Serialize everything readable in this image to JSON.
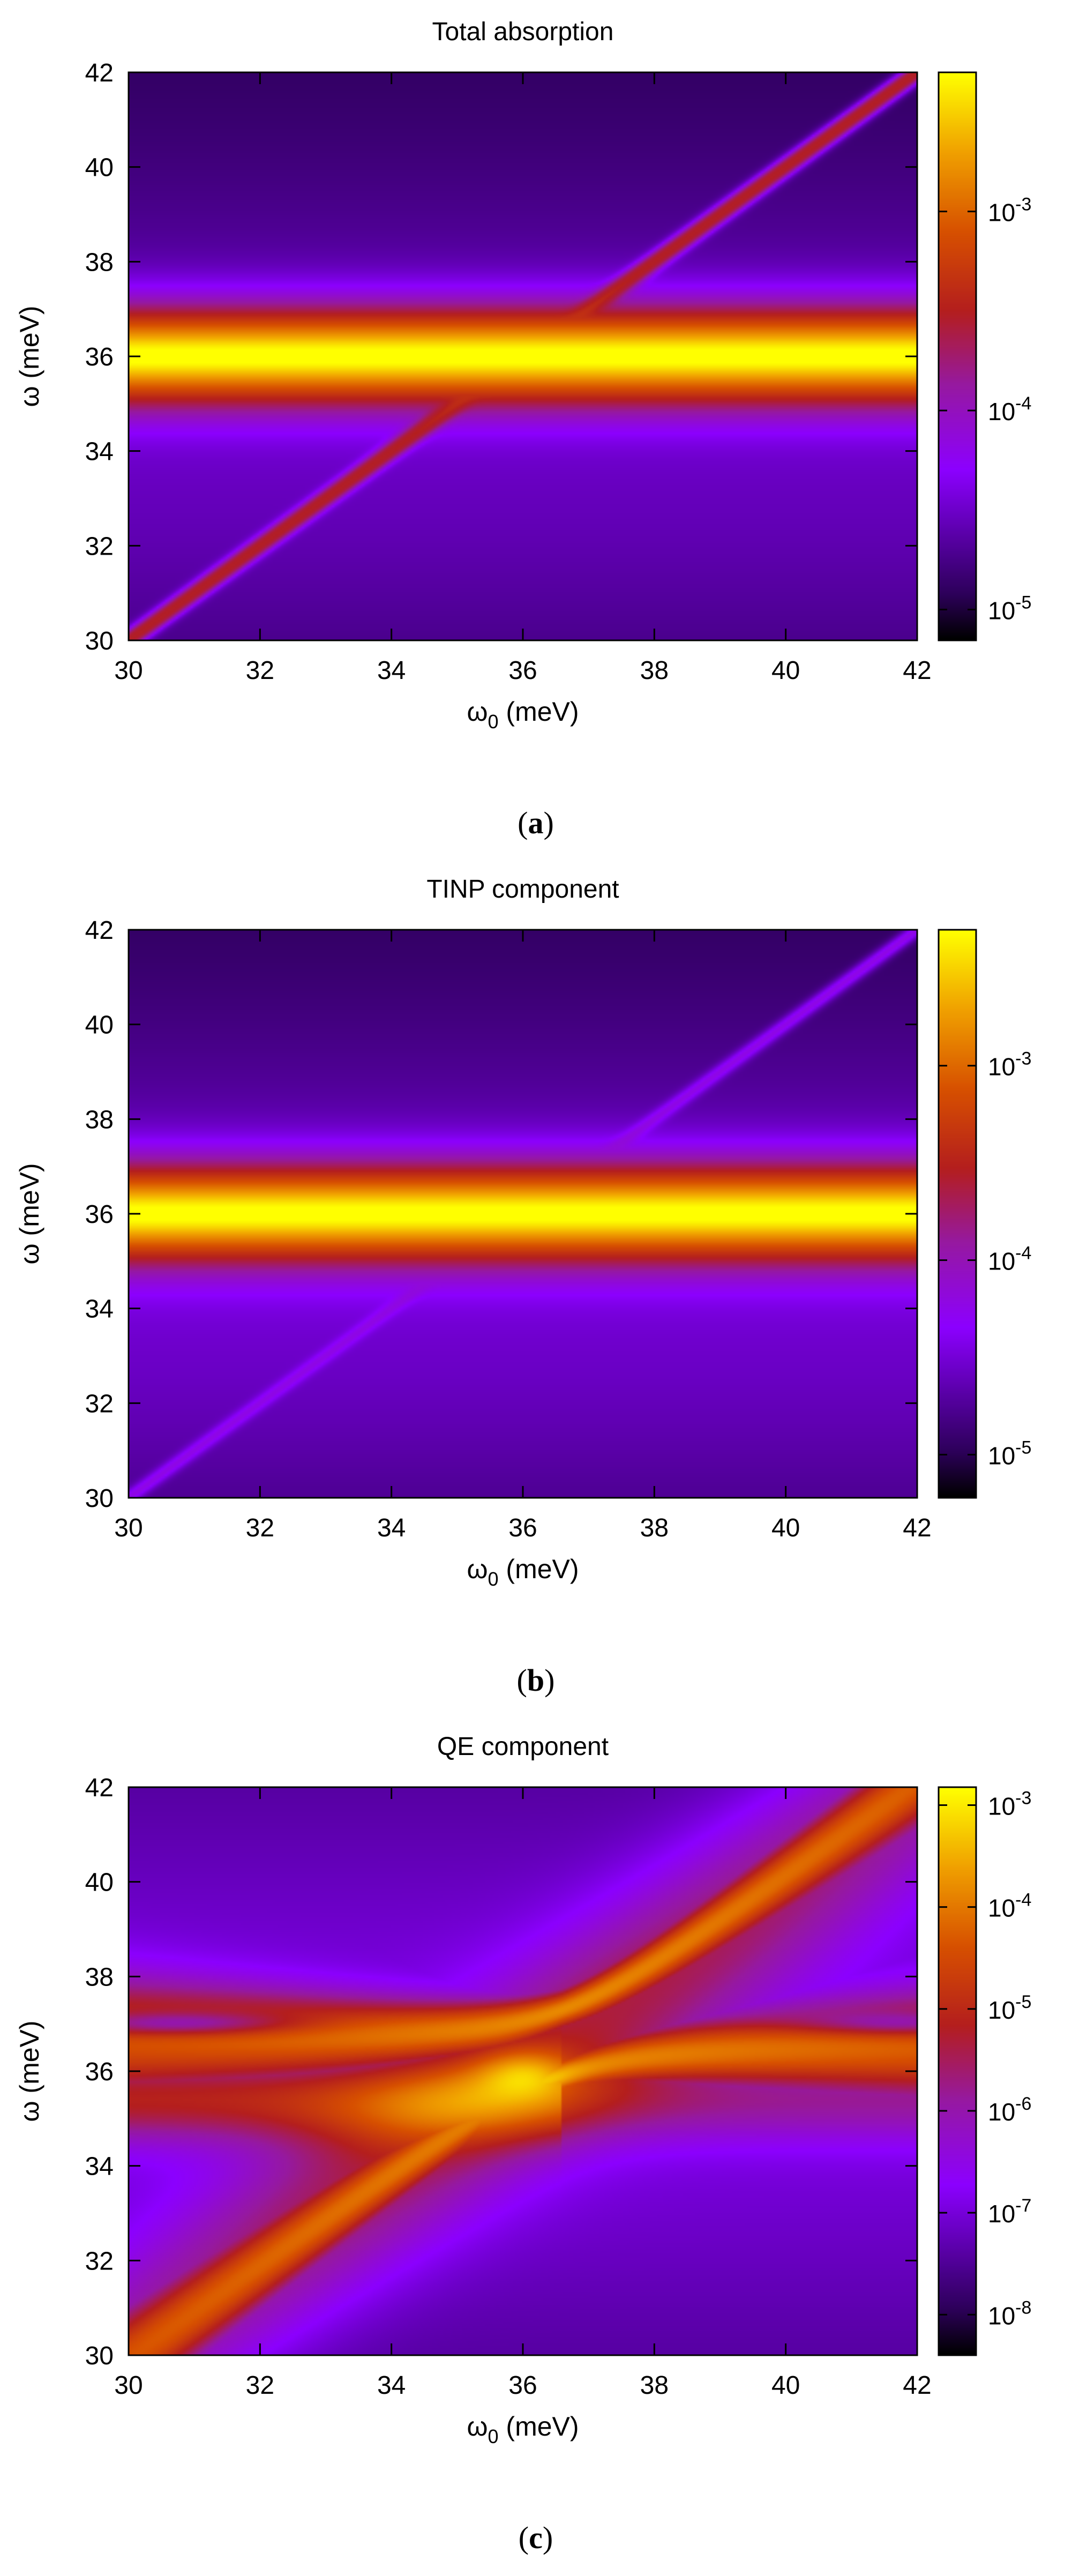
{
  "chart_data": [
    {
      "type": "heatmap",
      "title": "Total absorption",
      "caption_letter": "a",
      "xlabel": "ω0 (meV)",
      "ylabel": "ω (meV)",
      "xlim": [
        30,
        42
      ],
      "ylim": [
        30,
        42
      ],
      "x_ticks": [
        "30",
        "32",
        "34",
        "36",
        "38",
        "40",
        "42"
      ],
      "y_ticks": [
        "30",
        "32",
        "34",
        "36",
        "38",
        "40",
        "42"
      ],
      "colorbar": {
        "scale": "log",
        "range": [
          7e-06,
          0.005
        ],
        "ticks": [
          {
            "value": 1e-05,
            "label": "10-5"
          },
          {
            "value": 0.0001,
            "label": "10-4"
          },
          {
            "value": 0.001,
            "label": "10-3"
          }
        ]
      },
      "features": {
        "horizontal_band_center_meV": 36,
        "horizontal_band_width_meV": 2.8,
        "horizontal_band_peak": 0.005,
        "diagonal_peak": 0.0003,
        "background_range": [
          7e-06,
          3e-05
        ]
      }
    },
    {
      "type": "heatmap",
      "title": "TINP component",
      "caption_letter": "b",
      "xlabel": "ω0 (meV)",
      "ylabel": "ω (meV)",
      "xlim": [
        30,
        42
      ],
      "ylim": [
        30,
        42
      ],
      "x_ticks": [
        "30",
        "32",
        "34",
        "36",
        "38",
        "40",
        "42"
      ],
      "y_ticks": [
        "30",
        "32",
        "34",
        "36",
        "38",
        "40",
        "42"
      ],
      "colorbar": {
        "scale": "log",
        "range": [
          6e-06,
          0.005
        ],
        "ticks": [
          {
            "value": 1e-05,
            "label": "10-5"
          },
          {
            "value": 0.0001,
            "label": "10-4"
          },
          {
            "value": 0.001,
            "label": "10-3"
          }
        ]
      },
      "features": {
        "horizontal_band_center_meV": 36,
        "horizontal_band_width_meV": 2.8,
        "horizontal_band_peak": 0.005,
        "diagonal_peak": 6e-05,
        "background_range": [
          6e-06,
          3e-05
        ]
      }
    },
    {
      "type": "heatmap",
      "title": "QE component",
      "caption_letter": "c",
      "xlabel": "ω0 (meV)",
      "ylabel": "ω (meV)",
      "xlim": [
        30,
        42
      ],
      "ylim": [
        30,
        42
      ],
      "x_ticks": [
        "30",
        "32",
        "34",
        "36",
        "38",
        "40",
        "42"
      ],
      "y_ticks": [
        "30",
        "32",
        "34",
        "36",
        "38",
        "40",
        "42"
      ],
      "colorbar": {
        "scale": "log",
        "range": [
          4e-09,
          0.0015
        ],
        "ticks": [
          {
            "value": 1e-08,
            "label": "10-8"
          },
          {
            "value": 1e-07,
            "label": "10-7"
          },
          {
            "value": 1e-06,
            "label": "10-6"
          },
          {
            "value": 1e-05,
            "label": "10-5"
          },
          {
            "value": 0.0001,
            "label": "10-4"
          },
          {
            "value": 0.001,
            "label": "10-3"
          }
        ]
      },
      "features": {
        "anticrossing_center_meV": [
          36.6,
          36.6
        ],
        "peak_value": 0.001,
        "dark_line_meV": 37,
        "background_range": [
          4e-09,
          1e-07
        ]
      }
    }
  ]
}
